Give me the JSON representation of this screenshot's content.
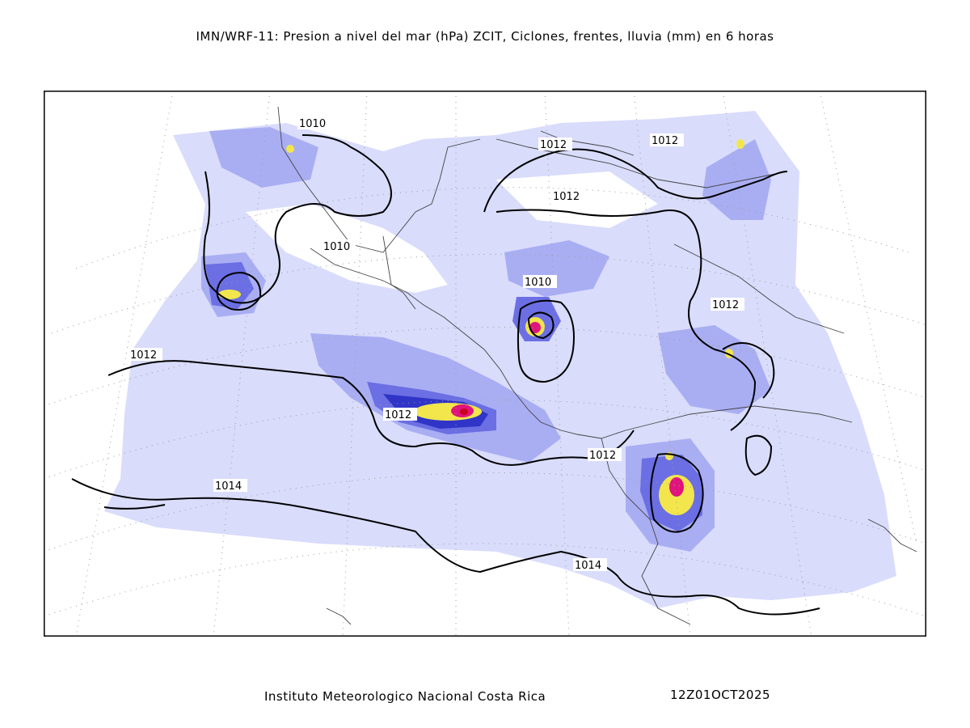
{
  "title": "IMN/WRF-11: Presion a nivel del mar (hPa) ZCIT, Ciclones, frentes, lluvia (mm) en 6 horas",
  "footer": {
    "institution": "Instituto Meteorologico Nacional Costa Rica",
    "datetime": "12Z01OCT2025"
  },
  "colors": {
    "rain_light": "#d9dcfb",
    "rain_mid": "#a9aef3",
    "rain_blue": "#6b6fe3",
    "rain_dark": "#3035c8",
    "rain_yellow": "#f2e64c",
    "rain_magenta": "#e0147c",
    "rain_red": "#c8001e",
    "isobar": "#000000",
    "coast": "#444444",
    "grid": "#9a9a9a"
  },
  "isobar_labels": [
    {
      "text": "1010"
    },
    {
      "text": "1010"
    },
    {
      "text": "1010"
    },
    {
      "text": "1012"
    },
    {
      "text": "1012"
    },
    {
      "text": "1012"
    },
    {
      "text": "1012"
    },
    {
      "text": "1012"
    },
    {
      "text": "1012"
    },
    {
      "text": "1014"
    },
    {
      "text": "1014"
    }
  ]
}
